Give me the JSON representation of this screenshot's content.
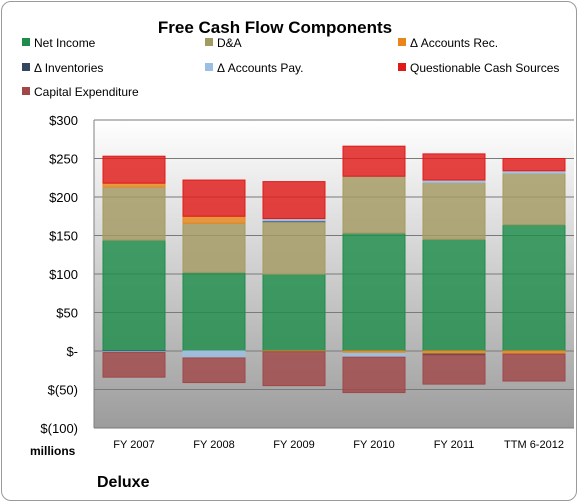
{
  "chart_data": {
    "type": "bar",
    "stacked": true,
    "title": "Free Cash Flow Components",
    "unit_label": "millions",
    "company": "Deluxe",
    "categories": [
      "FY 2007",
      "FY 2008",
      "FY 2009",
      "FY 2010",
      "FY 2011",
      "TTM 6-2012"
    ],
    "ylim": [
      -100,
      300
    ],
    "yticks": [
      300,
      250,
      200,
      150,
      100,
      50,
      0,
      -50,
      -100
    ],
    "ytick_labels": [
      "$300",
      "$250",
      "$200",
      "$150",
      "$100",
      "$50",
      "$-",
      "$(50)",
      "$(100)"
    ],
    "grid": true,
    "legend_position": "top",
    "series": [
      {
        "name": "Net Income",
        "color": "#1e8c4a",
        "values": [
          144,
          102,
          100,
          153,
          145,
          164
        ]
      },
      {
        "name": "D&A",
        "color": "#a39a62",
        "values": [
          69,
          64,
          68,
          74,
          74,
          67
        ]
      },
      {
        "name": "Δ Accounts Rec.",
        "color": "#e8861c",
        "values": [
          5,
          9,
          -1,
          -3,
          -4,
          -4
        ]
      },
      {
        "name": "Δ Inventories",
        "color": "#33475e",
        "values": [
          -1,
          0,
          1,
          0,
          -1,
          0
        ]
      },
      {
        "name": "Δ Accounts Pay.",
        "color": "#9bbfe3",
        "values": [
          -1,
          -9,
          3,
          -5,
          3,
          3
        ]
      },
      {
        "name": "Questionable Cash Sources",
        "color": "#e01a1a",
        "values": [
          35,
          47,
          48,
          39,
          34,
          16
        ]
      },
      {
        "name": "Capital Expenditure",
        "color": "#a04848",
        "values": [
          -32,
          -32,
          -44,
          -46,
          -38,
          -35
        ]
      }
    ]
  }
}
